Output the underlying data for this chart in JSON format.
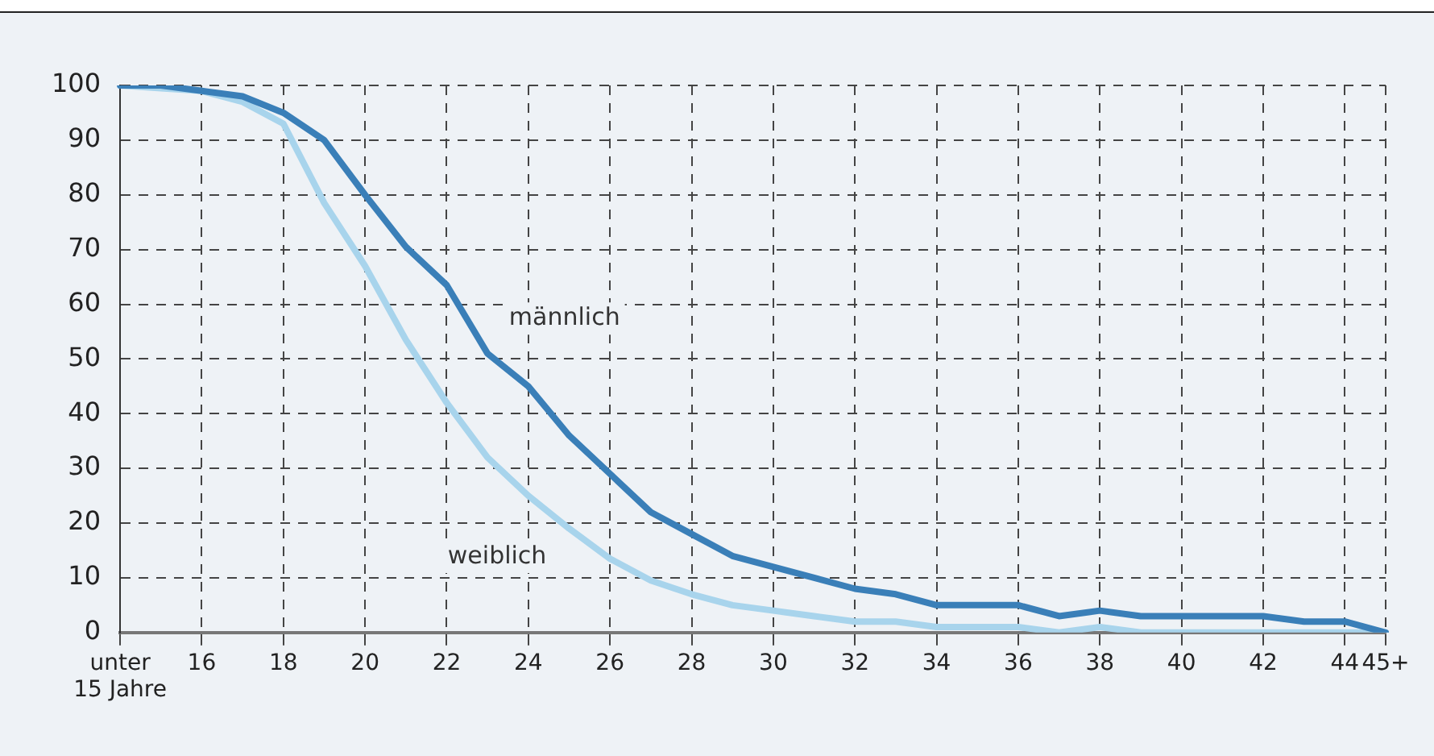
{
  "chart_data": {
    "type": "line",
    "categories": [
      "unter 15 Jahre",
      null,
      "16",
      null,
      "18",
      null,
      "20",
      null,
      "22",
      null,
      "24",
      null,
      "26",
      null,
      "28",
      null,
      "30",
      null,
      "32",
      null,
      "34",
      null,
      "36",
      null,
      "38",
      null,
      "40",
      null,
      "42",
      null,
      "44",
      "45+"
    ],
    "series": [
      {
        "name": "männlich",
        "color": "#3a7fb8",
        "values": [
          100,
          100,
          99,
          98,
          95,
          90,
          80,
          70.5,
          63.5,
          51,
          45,
          36,
          29,
          22,
          18,
          14,
          12,
          10,
          8,
          7,
          5,
          5,
          5,
          3,
          4,
          3,
          3,
          3,
          3,
          2,
          2,
          0
        ]
      },
      {
        "name": "weiblich",
        "color": "#a8d4ec",
        "values": [
          100,
          99.5,
          99,
          97,
          93,
          78.5,
          67,
          53.5,
          42,
          32,
          25,
          19,
          13.5,
          9.5,
          7,
          5,
          4,
          3,
          2,
          2,
          1,
          1,
          1,
          0,
          1,
          0,
          0,
          0,
          0,
          0,
          0,
          0
        ]
      }
    ],
    "ylim": [
      0,
      100
    ],
    "yticks": [
      0,
      10,
      20,
      30,
      40,
      50,
      60,
      70,
      80,
      90,
      100
    ],
    "grid": true,
    "legend": false,
    "marker": "none",
    "line_style": "solid"
  }
}
